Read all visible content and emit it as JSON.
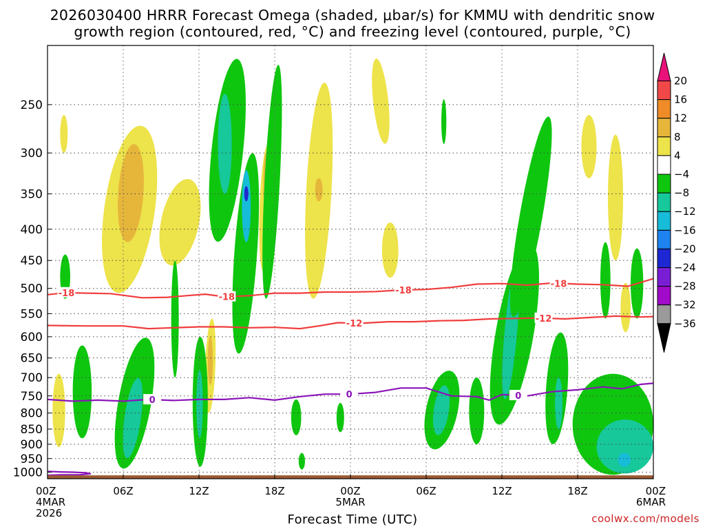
{
  "title": {
    "line1": "2026030400 HRRR Forecast Omega (shaded, μbar/s) for KMMU with dendritic snow",
    "line2": "growth region (contoured, red, °C) and freezing level (contoured, purple, °C)"
  },
  "credit": "coolwx.com/models",
  "chart_data": {
    "type": "heatmap",
    "title": "2026030400 HRRR Forecast Omega (shaded, μbar/s) for KMMU with dendritic snow growth region (contoured, red, °C) and freezing level (contoured, purple, °C)",
    "xlabel": "Forecast Time (UTC)",
    "ylabel": "",
    "x_unit": "forecast hour",
    "xlim": [
      0,
      48
    ],
    "y_unit": "hPa",
    "ylim": [
      1025,
      200
    ],
    "y_scale": "log-pressure",
    "y_ticks": [
      250,
      300,
      350,
      400,
      450,
      500,
      550,
      600,
      650,
      700,
      750,
      800,
      850,
      900,
      950,
      1000
    ],
    "x_ticks": [
      {
        "hour": 0,
        "lines": [
          "00Z",
          "4MAR",
          "2026"
        ]
      },
      {
        "hour": 6,
        "lines": [
          "06Z"
        ]
      },
      {
        "hour": 12,
        "lines": [
          "12Z"
        ]
      },
      {
        "hour": 18,
        "lines": [
          "18Z"
        ]
      },
      {
        "hour": 24,
        "lines": [
          "00Z",
          "5MAR"
        ]
      },
      {
        "hour": 30,
        "lines": [
          "06Z"
        ]
      },
      {
        "hour": 36,
        "lines": [
          "12Z"
        ]
      },
      {
        "hour": 42,
        "lines": [
          "18Z"
        ]
      },
      {
        "hour": 48,
        "lines": [
          "00Z",
          "6MAR"
        ]
      }
    ],
    "grid": true,
    "colorbar": {
      "levels": [
        20,
        16,
        12,
        8,
        4,
        -4,
        -8,
        -12,
        -16,
        -20,
        -24,
        -28,
        -32,
        -36
      ],
      "colors": [
        "#e8127a",
        "#f04848",
        "#ef8c28",
        "#e6b63b",
        "#ede34a",
        "#ffffff",
        "#0fc60f",
        "#16c89a",
        "#16bcd8",
        "#1e82f0",
        "#1e28d2",
        "#7a1ed6",
        "#a00ac8",
        "#9a9a9a",
        "#000000"
      ]
    },
    "ground_color": "#9c5a32",
    "series": [
      {
        "name": "-18 °C isotherm",
        "color": "#f03c3c",
        "labels": [
          {
            "hour": 1.5,
            "text": "-18"
          },
          {
            "hour": 14.2,
            "text": "-18"
          },
          {
            "hour": 28.2,
            "text": "-18"
          },
          {
            "hour": 40.5,
            "text": "-18"
          }
        ],
        "points": [
          [
            0,
            512
          ],
          [
            1.5,
            508
          ],
          [
            3,
            509
          ],
          [
            5,
            510
          ],
          [
            7.5,
            518
          ],
          [
            9.5,
            517
          ],
          [
            11,
            514
          ],
          [
            12.5,
            511
          ],
          [
            14,
            516
          ],
          [
            16,
            514
          ],
          [
            18,
            509
          ],
          [
            20,
            509
          ],
          [
            22,
            507
          ],
          [
            24,
            507
          ],
          [
            26,
            506
          ],
          [
            28,
            503
          ],
          [
            30,
            502
          ],
          [
            32,
            498
          ],
          [
            34,
            492
          ],
          [
            36,
            491
          ],
          [
            38,
            494
          ],
          [
            40,
            490
          ],
          [
            42,
            492
          ],
          [
            44,
            493
          ],
          [
            46,
            496
          ],
          [
            48,
            482
          ]
        ]
      },
      {
        "name": "-12 °C isotherm",
        "color": "#f03c3c",
        "labels": [
          {
            "hour": 24.3,
            "text": "-12"
          },
          {
            "hour": 39.3,
            "text": "-12"
          }
        ],
        "points": [
          [
            0,
            575
          ],
          [
            3,
            576
          ],
          [
            6,
            576
          ],
          [
            8,
            582
          ],
          [
            10,
            580
          ],
          [
            12,
            578
          ],
          [
            14,
            578
          ],
          [
            16,
            580
          ],
          [
            18,
            579
          ],
          [
            20,
            582
          ],
          [
            21.5,
            576
          ],
          [
            23,
            569
          ],
          [
            25,
            570
          ],
          [
            27,
            567
          ],
          [
            29,
            567
          ],
          [
            31,
            565
          ],
          [
            33,
            564
          ],
          [
            35,
            561
          ],
          [
            37,
            560
          ],
          [
            39,
            559
          ],
          [
            41,
            561
          ],
          [
            43,
            558
          ],
          [
            45,
            555
          ],
          [
            47,
            557
          ],
          [
            48,
            556
          ]
        ]
      },
      {
        "name": "0 °C freezing level",
        "color": "#8a14b8",
        "labels": [
          {
            "hour": 8.3,
            "text": "0"
          },
          {
            "hour": 23.9,
            "text": "0"
          },
          {
            "hour": 37.3,
            "text": "0"
          }
        ],
        "points": [
          [
            0,
            760
          ],
          [
            2,
            765
          ],
          [
            4,
            762
          ],
          [
            6,
            765
          ],
          [
            8,
            760
          ],
          [
            10,
            763
          ],
          [
            12,
            760
          ],
          [
            14,
            760
          ],
          [
            16,
            755
          ],
          [
            18,
            762
          ],
          [
            20,
            752
          ],
          [
            22,
            745
          ],
          [
            24,
            745
          ],
          [
            26,
            740
          ],
          [
            28,
            728
          ],
          [
            30,
            728
          ],
          [
            32,
            750
          ],
          [
            34,
            752
          ],
          [
            35,
            762
          ],
          [
            36,
            746
          ],
          [
            38,
            750
          ],
          [
            40,
            738
          ],
          [
            42,
            733
          ],
          [
            44,
            725
          ],
          [
            45.5,
            730
          ],
          [
            47,
            718
          ],
          [
            48,
            715
          ]
        ]
      },
      {
        "name": "0 °C freezing level (near-surface contour)",
        "color": "#8a14b8",
        "labels": [],
        "points": [
          [
            0,
            997
          ],
          [
            1,
            999
          ],
          [
            2,
            1000
          ],
          [
            3,
            1002
          ],
          [
            3.4,
            1006
          ],
          [
            2.5,
            1010
          ],
          [
            1,
            1010
          ],
          [
            0,
            1012
          ]
        ]
      }
    ]
  }
}
